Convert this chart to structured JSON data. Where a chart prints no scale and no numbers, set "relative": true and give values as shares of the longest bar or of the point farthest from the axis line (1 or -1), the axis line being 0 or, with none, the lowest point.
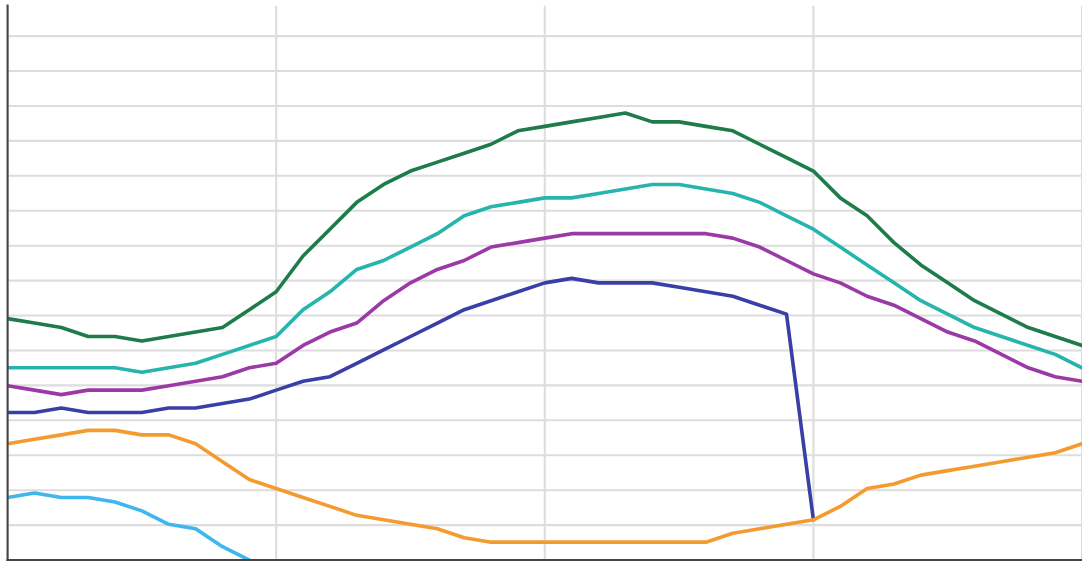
{
  "chart_data": {
    "type": "line",
    "relative": true,
    "grid": true,
    "line_style": "solid",
    "categories": [
      null,
      null,
      null,
      null,
      null,
      null,
      null,
      null,
      null,
      null,
      null,
      null,
      null,
      null,
      null,
      null,
      null,
      null,
      null,
      null,
      null,
      null,
      null,
      null,
      null,
      null,
      null,
      null,
      null,
      null,
      null,
      null,
      null,
      null,
      null,
      null,
      null,
      null,
      null,
      null,
      null
    ],
    "series": [
      {
        "color": "#1e7b4a",
        "values": [
          0.54,
          0.53,
          0.52,
          0.5,
          0.5,
          0.49,
          0.5,
          0.51,
          0.52,
          0.56,
          0.6,
          0.68,
          0.74,
          0.8,
          0.84,
          0.87,
          0.89,
          0.91,
          0.93,
          0.96,
          0.97,
          0.98,
          0.99,
          1.0,
          0.98,
          0.98,
          0.97,
          0.96,
          0.93,
          0.9,
          0.87,
          0.81,
          0.77,
          0.71,
          0.66,
          0.62,
          0.58,
          0.55,
          0.52,
          0.5,
          0.48
        ]
      },
      {
        "color": "#26b5ac",
        "values": [
          0.43,
          0.43,
          0.43,
          0.43,
          0.43,
          0.42,
          0.43,
          0.44,
          0.46,
          0.48,
          0.5,
          0.56,
          0.6,
          0.65,
          0.67,
          0.7,
          0.73,
          0.77,
          0.79,
          0.8,
          0.81,
          0.81,
          0.82,
          0.83,
          0.84,
          0.84,
          0.83,
          0.82,
          0.8,
          0.77,
          0.74,
          0.7,
          0.66,
          0.62,
          0.58,
          0.55,
          0.52,
          0.5,
          0.48,
          0.46,
          0.43
        ]
      },
      {
        "color": "#9b3aa6",
        "values": [
          0.39,
          0.38,
          0.37,
          0.38,
          0.38,
          0.38,
          0.39,
          0.4,
          0.41,
          0.43,
          0.44,
          0.48,
          0.51,
          0.53,
          0.58,
          0.62,
          0.65,
          0.67,
          0.7,
          0.71,
          0.72,
          0.73,
          0.73,
          0.73,
          0.73,
          0.73,
          0.73,
          0.72,
          0.7,
          0.67,
          0.64,
          0.62,
          0.59,
          0.57,
          0.54,
          0.51,
          0.49,
          0.46,
          0.43,
          0.41,
          0.4
        ]
      },
      {
        "color": "#3a3fa8",
        "values": [
          0.33,
          0.33,
          0.34,
          0.33,
          0.33,
          0.33,
          0.34,
          0.34,
          0.35,
          0.36,
          0.38,
          0.4,
          0.41,
          0.44,
          0.47,
          0.5,
          0.53,
          0.56,
          0.58,
          0.6,
          0.62,
          0.63,
          0.62,
          0.62,
          0.62,
          0.61,
          0.6,
          0.59,
          0.57,
          0.55,
          0.09,
          null,
          null,
          null,
          null,
          null,
          null,
          null,
          null,
          null,
          null
        ]
      },
      {
        "color": "#f59a2f",
        "values": [
          0.26,
          0.27,
          0.28,
          0.29,
          0.29,
          0.28,
          0.28,
          0.26,
          0.22,
          0.18,
          0.16,
          0.14,
          0.12,
          0.1,
          0.09,
          0.08,
          0.07,
          0.05,
          0.04,
          0.04,
          0.04,
          0.04,
          0.04,
          0.04,
          0.04,
          0.04,
          0.04,
          0.06,
          0.07,
          0.08,
          0.09,
          0.12,
          0.16,
          0.17,
          0.19,
          0.2,
          0.21,
          0.22,
          0.23,
          0.24,
          0.26
        ]
      },
      {
        "color": "#3fb6ee",
        "values": [
          0.14,
          0.15,
          0.14,
          0.14,
          0.13,
          0.11,
          0.08,
          0.07,
          0.03,
          0.0,
          null,
          null,
          null,
          null,
          null,
          null,
          null,
          null,
          null,
          null,
          null,
          null,
          null,
          null,
          null,
          null,
          null,
          null,
          null,
          null,
          null,
          null,
          null,
          null,
          null,
          null,
          null,
          null,
          null,
          null,
          null
        ]
      }
    ]
  }
}
